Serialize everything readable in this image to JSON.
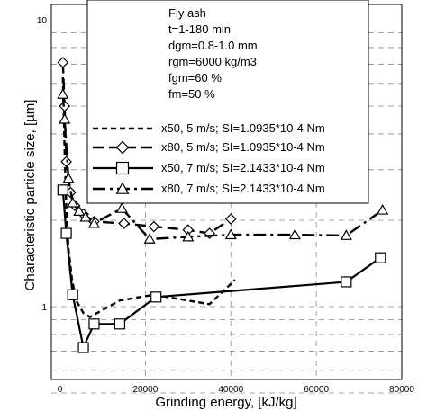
{
  "chart_data": {
    "type": "line",
    "xlabel": "Grinding energy, [kJ/kg]",
    "ylabel": "Characteristic particle size, [µm]",
    "xlim": [
      -2000,
      80000
    ],
    "xticks": [
      "0",
      "20000",
      "40000",
      "60000",
      "80000"
    ],
    "ylim": [
      0.35,
      10
    ],
    "yscale": "log",
    "yticks": [
      "1",
      "10"
    ],
    "grid": true,
    "legend_position": "top-right",
    "legend_header": [
      "Fly ash",
      "t=1-180 min",
      "dgm=0.8-1.0 mm",
      "rgm=6000 kg/m3",
      "fgm=60 %",
      "fm=50 %"
    ],
    "series": [
      {
        "name": "x50, 5 m/s; SI=1.0935*10-4 Nm",
        "style": "short-dash",
        "marker": "none",
        "color": "#000000",
        "x": [
          700,
          1100,
          1500,
          2000,
          2800,
          3800,
          5500,
          7000,
          14000,
          22000,
          35000,
          41000
        ],
        "y": [
          6.3,
          3.5,
          2.2,
          1.6,
          1.25,
          1.05,
          0.95,
          0.92,
          1.05,
          1.1,
          1.02,
          1.24
        ]
      },
      {
        "name": "x80, 5 m/s; SI=1.0935*10-4 Nm",
        "style": "long-dash",
        "marker": "diamond",
        "color": "#000000",
        "x": [
          700,
          1100,
          1500,
          2500,
          3500,
          5500,
          8000,
          15000,
          22000,
          30000,
          35000,
          40000
        ],
        "y": [
          7.1,
          5.0,
          3.2,
          2.5,
          2.25,
          2.1,
          1.98,
          1.95,
          1.9,
          1.85,
          1.8,
          2.02
        ]
      },
      {
        "name": "x50, 7 m/s; SI=2.1433*10-4 Nm",
        "style": "solid",
        "marker": "square",
        "color": "#000000",
        "x": [
          700,
          1500,
          3000,
          5500,
          8000,
          14000,
          22500,
          67000,
          75000
        ],
        "y": [
          2.55,
          1.8,
          1.1,
          0.72,
          0.87,
          0.87,
          1.08,
          1.22,
          1.48
        ]
      },
      {
        "name": "x80, 7 m/s; SI=2.1433*10-4 Nm",
        "style": "dash-dot",
        "marker": "triangle",
        "color": "#000000",
        "x": [
          700,
          1100,
          2000,
          3000,
          4500,
          6000,
          8000,
          14500,
          21000,
          30000,
          40000,
          55000,
          67000,
          75500
        ],
        "y": [
          5.5,
          4.5,
          2.8,
          2.3,
          2.15,
          2.05,
          1.95,
          2.2,
          1.72,
          1.75,
          1.78,
          1.78,
          1.77,
          2.17
        ]
      }
    ]
  }
}
